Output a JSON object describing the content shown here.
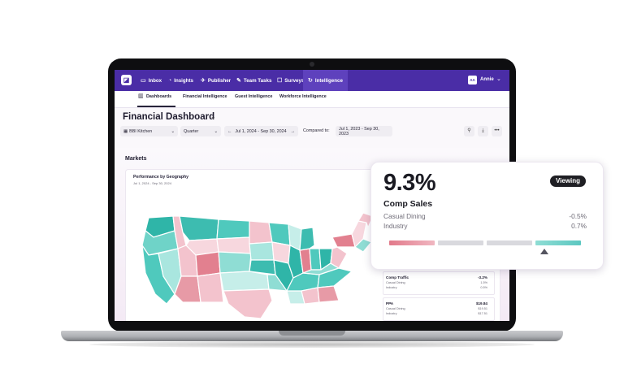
{
  "app": {
    "nav": {
      "items": [
        {
          "label": "Inbox",
          "icon": "inbox-icon"
        },
        {
          "label": "Insights",
          "icon": "insights-icon"
        },
        {
          "label": "Publisher",
          "icon": "publisher-icon"
        },
        {
          "label": "Team Tasks",
          "icon": "tasks-icon"
        },
        {
          "label": "Surveys",
          "icon": "survey-icon"
        },
        {
          "label": "Intelligence",
          "icon": "intelligence-icon"
        }
      ],
      "active": "Intelligence",
      "user_initials": "AA",
      "user_name": "Annie"
    },
    "subnav": {
      "items": [
        "Dashboards",
        "Financial Intelligence",
        "Guest Intelligence",
        "Workforce Intelligence"
      ],
      "active": "Dashboards"
    },
    "page_title": "Financial Dashboard",
    "filters": {
      "location": "BBI Kitchen",
      "period": "Quarter",
      "date_range": "Jul 1, 2024 - Sep 30, 2024",
      "compared_label": "Compared to:",
      "compare_range": "Jul 1, 2023 - Sep 30, 2023"
    },
    "markets": {
      "section_title": "Markets",
      "map_title": "Performance by Geography",
      "map_date": "Jul 1, 2024 - Sep 30, 2024",
      "cards": [
        {
          "title": "Comp Traffic",
          "sub1": "Casual Dining",
          "sub2": "Industry",
          "value": "-3.2%",
          "val1": "1.5%",
          "val2": "0.5%"
        },
        {
          "title": "PPA",
          "sub1": "Casual Dining",
          "sub2": "Industry",
          "value": "$19.84",
          "val1": "$19.51",
          "val2": "$17.51"
        }
      ]
    }
  },
  "popup": {
    "value": "9.3%",
    "badge": "Viewing",
    "metric": "Comp Sales",
    "rows": [
      {
        "label": "Casual Dining",
        "value": "-0.5%"
      },
      {
        "label": "Industry",
        "value": "0.7%"
      }
    ],
    "scale_colors": [
      "#e2798a",
      "#d9d9de",
      "#d9d9de",
      "#5cc7c1"
    ],
    "marker_segment": 3
  },
  "colors": {
    "brand": "#4a2da6",
    "positive": "#45c1b8",
    "negative": "#e07b8b"
  }
}
